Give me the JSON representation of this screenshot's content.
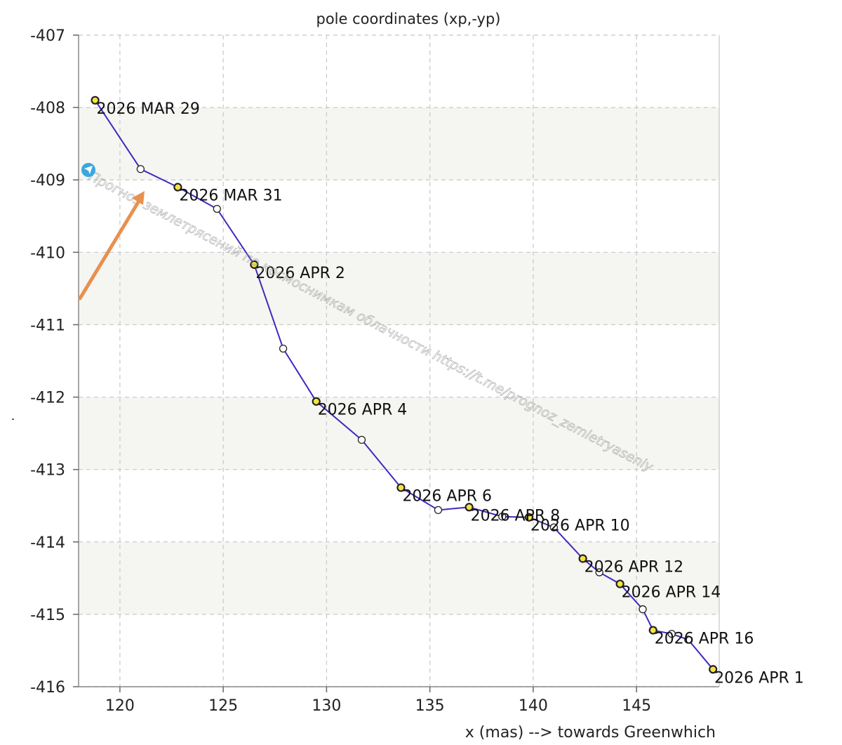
{
  "chart_data": {
    "type": "line",
    "title": "pole coordinates (xp,-yp)",
    "xlabel": "x (mas) --> towards Greenwhich",
    "ylabel": "",
    "xlim": [
      118,
      149
    ],
    "ylim": [
      -416,
      -407
    ],
    "x_ticks": [
      120,
      125,
      130,
      135,
      140,
      145
    ],
    "y_ticks": [
      -407,
      -408,
      -409,
      -410,
      -411,
      -412,
      -413,
      -414,
      -415,
      -416
    ],
    "grid": true,
    "banded_background": true,
    "colors": {
      "line": "#3d2bbf",
      "labeled_point": "#f5e342",
      "open_point": "#ffffff",
      "band": "#f5f5f1",
      "grid": "#c8c8c8",
      "arrow": "#e8904f",
      "badge": "#3aa7df",
      "watermark": "#9a9a9a"
    },
    "series": [
      {
        "points": [
          {
            "x": 118.8,
            "y": -407.9,
            "label": "2026 MAR 29"
          },
          {
            "x": 121.0,
            "y": -408.85,
            "label": ""
          },
          {
            "x": 122.8,
            "y": -409.1,
            "label": "2026 MAR 31"
          },
          {
            "x": 124.7,
            "y": -409.4,
            "label": ""
          },
          {
            "x": 126.5,
            "y": -410.17,
            "label": "2026 APR 2"
          },
          {
            "x": 127.9,
            "y": -411.33,
            "label": ""
          },
          {
            "x": 129.5,
            "y": -412.06,
            "label": "2026 APR 4"
          },
          {
            "x": 131.7,
            "y": -412.59,
            "label": ""
          },
          {
            "x": 133.6,
            "y": -413.25,
            "label": "2026 APR 6"
          },
          {
            "x": 135.4,
            "y": -413.56,
            "label": ""
          },
          {
            "x": 136.9,
            "y": -413.52,
            "label": "2026 APR 8"
          },
          {
            "x": 138.5,
            "y": -413.65,
            "label": ""
          },
          {
            "x": 139.8,
            "y": -413.66,
            "label": "2026 APR 10"
          },
          {
            "x": 141.0,
            "y": -413.8,
            "label": ""
          },
          {
            "x": 142.4,
            "y": -414.23,
            "label": "2026 APR 12"
          },
          {
            "x": 143.2,
            "y": -414.42,
            "label": ""
          },
          {
            "x": 144.2,
            "y": -414.58,
            "label": "2026 APR 14"
          },
          {
            "x": 145.3,
            "y": -414.93,
            "label": ""
          },
          {
            "x": 145.8,
            "y": -415.22,
            "label": "2026 APR 16"
          },
          {
            "x": 146.7,
            "y": -415.27,
            "label": ""
          },
          {
            "x": 147.5,
            "y": -415.35,
            "label": ""
          },
          {
            "x": 148.7,
            "y": -415.76,
            "label": "2026 APR 1"
          }
        ]
      }
    ],
    "watermark_text": "Прогноз землетрясений по космоснимкам облачности   https://t.me/prognoz_zemletryaseniy"
  }
}
